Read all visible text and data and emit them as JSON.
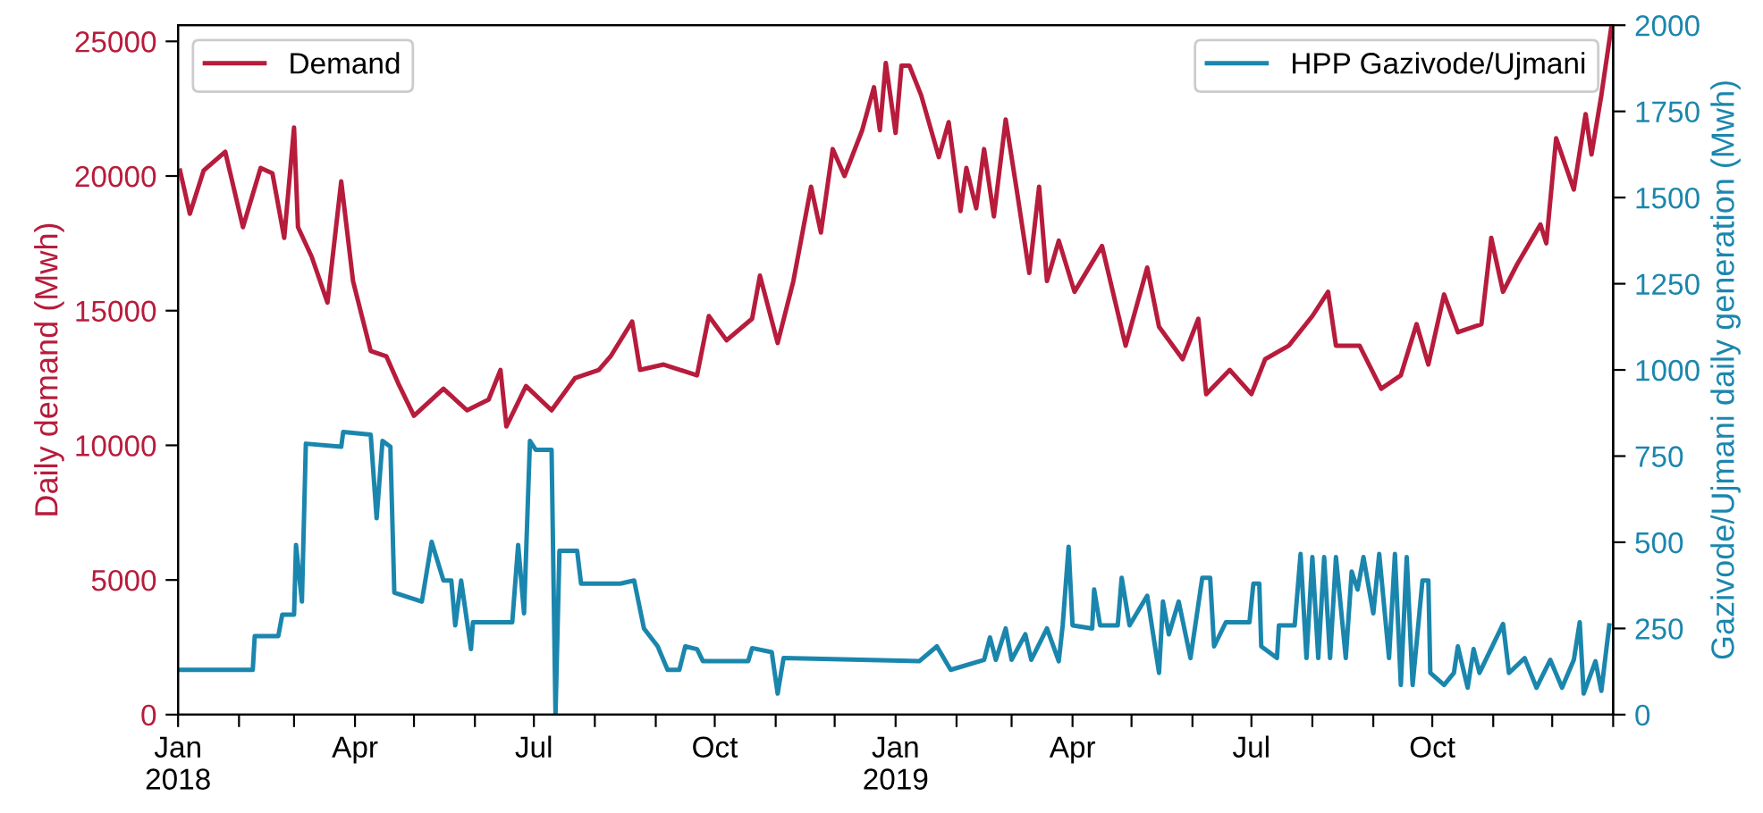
{
  "chart_data": {
    "type": "line",
    "ylabel": "Daily demand (Mwh)",
    "y2label": "Gazivode/Ujmani daily generation (Mwh)",
    "xlim": [
      "2018-01-01",
      "2020-01-01"
    ],
    "xticks": [
      {
        "value": "2018-01-01",
        "label": "Jan\n2018"
      },
      {
        "value": "2018-02-01",
        "label": null
      },
      {
        "value": "2018-03-01",
        "label": null
      },
      {
        "value": "2018-04-01",
        "label": "Apr"
      },
      {
        "value": "2018-05-01",
        "label": null
      },
      {
        "value": "2018-06-01",
        "label": null
      },
      {
        "value": "2018-07-01",
        "label": "Jul"
      },
      {
        "value": "2018-08-01",
        "label": null
      },
      {
        "value": "2018-09-01",
        "label": null
      },
      {
        "value": "2018-10-01",
        "label": "Oct"
      },
      {
        "value": "2018-11-01",
        "label": null
      },
      {
        "value": "2018-12-01",
        "label": null
      },
      {
        "value": "2019-01-01",
        "label": "Jan\n2019"
      },
      {
        "value": "2019-02-01",
        "label": null
      },
      {
        "value": "2019-03-01",
        "label": null
      },
      {
        "value": "2019-04-01",
        "label": "Apr"
      },
      {
        "value": "2019-05-01",
        "label": null
      },
      {
        "value": "2019-06-01",
        "label": null
      },
      {
        "value": "2019-07-01",
        "label": "Jul"
      },
      {
        "value": "2019-08-01",
        "label": null
      },
      {
        "value": "2019-09-01",
        "label": null
      },
      {
        "value": "2019-10-01",
        "label": "Oct"
      },
      {
        "value": "2019-11-01",
        "label": null
      },
      {
        "value": "2019-12-01",
        "label": null
      },
      {
        "value": "2020-01-01",
        "label": null
      }
    ],
    "ylim": [
      0,
      25600
    ],
    "yticks": [
      0,
      5000,
      10000,
      15000,
      20000,
      25000
    ],
    "y2lim": [
      0,
      2000
    ],
    "y2ticks": [
      0,
      250,
      500,
      750,
      1000,
      1250,
      1500,
      1750,
      2000
    ],
    "grid": false,
    "legend": "top left",
    "line_style": "solid",
    "marker": "none",
    "series": [
      {
        "name": "Demand",
        "color": "#b71c3c",
        "x": [
          "2018-01-02",
          "2018-01-07",
          "2018-01-14",
          "2018-01-25",
          "2018-02-03",
          "2018-02-12",
          "2018-02-18",
          "2018-02-24",
          "2018-03-01",
          "2018-03-03",
          "2018-03-10",
          "2018-03-18",
          "2018-03-25",
          "2018-03-31",
          "2018-04-09",
          "2018-04-17",
          "2018-04-23",
          "2018-05-01",
          "2018-05-16",
          "2018-05-28",
          "2018-06-08",
          "2018-06-14",
          "2018-06-17",
          "2018-06-27",
          "2018-07-10",
          "2018-07-22",
          "2018-08-03",
          "2018-08-09",
          "2018-08-20",
          "2018-08-24",
          "2018-09-05",
          "2018-09-22",
          "2018-09-28",
          "2018-10-07",
          "2018-10-20",
          "2018-10-24",
          "2018-11-02",
          "2018-11-10",
          "2018-11-19",
          "2018-11-24",
          "2018-11-30",
          "2018-12-06",
          "2018-12-15",
          "2018-12-21",
          "2018-12-24",
          "2018-12-27",
          "2019-01-01",
          "2019-01-04",
          "2019-01-08",
          "2019-01-14",
          "2019-01-23",
          "2019-01-28",
          "2019-02-03",
          "2019-02-06",
          "2019-02-11",
          "2019-02-15",
          "2019-02-20",
          "2019-02-26",
          "2019-03-04",
          "2019-03-10",
          "2019-03-15",
          "2019-03-19",
          "2019-03-25",
          "2019-04-02",
          "2019-04-16",
          "2019-04-28",
          "2019-05-09",
          "2019-05-15",
          "2019-05-27",
          "2019-06-04",
          "2019-06-08",
          "2019-06-20",
          "2019-07-01",
          "2019-07-08",
          "2019-07-20",
          "2019-08-01",
          "2019-08-09",
          "2019-08-13",
          "2019-08-25",
          "2019-09-05",
          "2019-09-15",
          "2019-09-23",
          "2019-09-29",
          "2019-10-07",
          "2019-10-14",
          "2019-10-26",
          "2019-10-31",
          "2019-11-06",
          "2019-11-13",
          "2019-11-25",
          "2019-11-28",
          "2019-12-03",
          "2019-12-12",
          "2019-12-18",
          "2019-12-21",
          "2019-12-26",
          "2019-12-31"
        ],
        "values": [
          20200,
          18600,
          20200,
          20900,
          18100,
          20300,
          20100,
          17700,
          21800,
          18100,
          17000,
          15300,
          19800,
          16100,
          13500,
          13300,
          12300,
          11100,
          12100,
          11300,
          11700,
          12800,
          10700,
          12200,
          11300,
          12500,
          12800,
          13300,
          14600,
          12800,
          13000,
          12600,
          14800,
          13900,
          14700,
          16300,
          13800,
          16100,
          19600,
          17900,
          21000,
          20000,
          21700,
          23300,
          21700,
          24200,
          21600,
          24100,
          24100,
          23000,
          20700,
          22000,
          18700,
          20300,
          18800,
          21000,
          18500,
          22100,
          19300,
          16400,
          19600,
          16100,
          17600,
          15700,
          17400,
          13700,
          16600,
          14400,
          13200,
          14700,
          11900,
          12800,
          11900,
          13200,
          13700,
          14800,
          15700,
          13700,
          13700,
          12100,
          12600,
          14500,
          13000,
          15600,
          14200,
          14500,
          17700,
          15700,
          16700,
          18200,
          17500,
          21400,
          19500,
          22300,
          20800,
          23000,
          25500
        ]
      },
      {
        "name": "HPP Gazivode/Ujmani",
        "color": "#1b86ad",
        "axis": "y2",
        "x": [
          "2018-01-01",
          "2018-02-08",
          "2018-02-09",
          "2018-02-21",
          "2018-02-23",
          "2018-03-01",
          "2018-03-02",
          "2018-03-05",
          "2018-03-07",
          "2018-03-25",
          "2018-03-26",
          "2018-04-09",
          "2018-04-12",
          "2018-04-15",
          "2018-04-19",
          "2018-04-21",
          "2018-05-05",
          "2018-05-10",
          "2018-05-16",
          "2018-05-20",
          "2018-05-22",
          "2018-05-25",
          "2018-05-30",
          "2018-05-31",
          "2018-06-20",
          "2018-06-23",
          "2018-06-26",
          "2018-06-29",
          "2018-07-02",
          "2018-07-10",
          "2018-07-12",
          "2018-07-14",
          "2018-07-23",
          "2018-07-25",
          "2018-08-14",
          "2018-08-21",
          "2018-08-26",
          "2018-09-02",
          "2018-09-07",
          "2018-09-13",
          "2018-09-16",
          "2018-09-22",
          "2018-09-25",
          "2018-10-18",
          "2018-10-20",
          "2018-10-30",
          "2018-11-02",
          "2018-11-05",
          "2019-01-13",
          "2019-01-22",
          "2019-01-29",
          "2019-02-15",
          "2019-02-18",
          "2019-02-21",
          "2019-02-26",
          "2019-03-01",
          "2019-03-08",
          "2019-03-11",
          "2019-03-19",
          "2019-03-25",
          "2019-03-27",
          "2019-03-30",
          "2019-04-01",
          "2019-04-11",
          "2019-04-12",
          "2019-04-15",
          "2019-04-24",
          "2019-04-26",
          "2019-04-30",
          "2019-05-09",
          "2019-05-15",
          "2019-05-17",
          "2019-05-20",
          "2019-05-25",
          "2019-05-31",
          "2019-06-06",
          "2019-06-10",
          "2019-06-12",
          "2019-06-18",
          "2019-06-30",
          "2019-07-02",
          "2019-07-05",
          "2019-07-06",
          "2019-07-14",
          "2019-07-15",
          "2019-07-23",
          "2019-07-26",
          "2019-07-29",
          "2019-08-01",
          "2019-08-04",
          "2019-08-07",
          "2019-08-10",
          "2019-08-13",
          "2019-08-18",
          "2019-08-21",
          "2019-08-24",
          "2019-08-27",
          "2019-09-01",
          "2019-09-04",
          "2019-09-09",
          "2019-09-12",
          "2019-09-15",
          "2019-09-18",
          "2019-09-21",
          "2019-09-26",
          "2019-09-29",
          "2019-09-30",
          "2019-10-07",
          "2019-10-12",
          "2019-10-14",
          "2019-10-19",
          "2019-10-22",
          "2019-10-25",
          "2019-11-06",
          "2019-11-09",
          "2019-11-17",
          "2019-11-23",
          "2019-11-30",
          "2019-12-06",
          "2019-12-12",
          "2019-12-15",
          "2019-12-17",
          "2019-12-23",
          "2019-12-26",
          "2019-12-30"
        ],
        "values": [
          130,
          130,
          228,
          228,
          290,
          290,
          492,
          328,
          786,
          777,
          820,
          812,
          570,
          794,
          777,
          354,
          328,
          501,
          389,
          389,
          259,
          389,
          190,
          268,
          268,
          492,
          294,
          794,
          768,
          768,
          0,
          475,
          475,
          380,
          380,
          389,
          250,
          198,
          130,
          130,
          198,
          190,
          155,
          155,
          193,
          181,
          61,
          164,
          155,
          198,
          130,
          159,
          224,
          159,
          250,
          159,
          233,
          159,
          250,
          155,
          259,
          487,
          259,
          250,
          363,
          259,
          259,
          397,
          259,
          345,
          121,
          328,
          233,
          328,
          164,
          397,
          397,
          198,
          268,
          268,
          380,
          380,
          198,
          164,
          259,
          259,
          466,
          164,
          457,
          164,
          457,
          164,
          457,
          164,
          415,
          363,
          457,
          294,
          466,
          164,
          466,
          86,
          457,
          86,
          389,
          389,
          121,
          86,
          121,
          198,
          78,
          190,
          121,
          263,
          121,
          164,
          78,
          159,
          78,
          159,
          268,
          61,
          155,
          69,
          259
        ]
      }
    ]
  }
}
